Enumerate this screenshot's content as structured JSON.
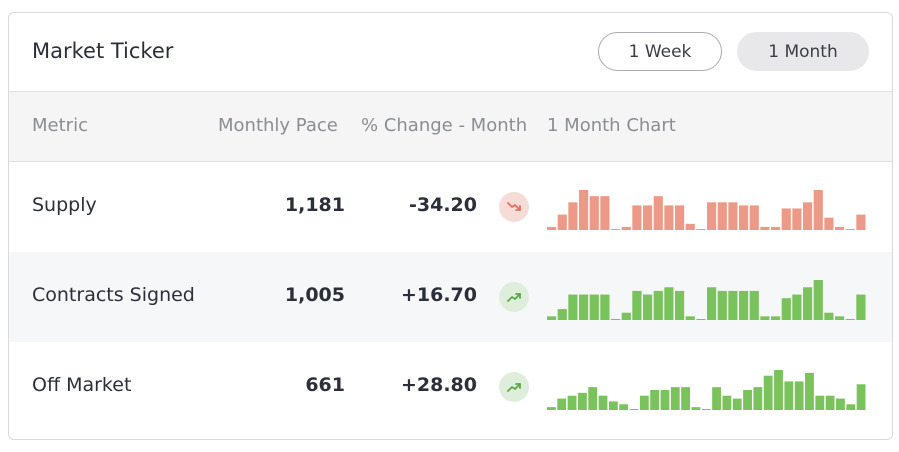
{
  "header": {
    "title": "Market Ticker"
  },
  "range_buttons": [
    {
      "label": "1 Week",
      "selected": false
    },
    {
      "label": "1 Month",
      "selected": true
    }
  ],
  "columns": [
    "Metric",
    "Monthly Pace",
    "% Change - Month",
    "1 Month Chart"
  ],
  "colors": {
    "down": "#ec9a87",
    "up": "#7ac25b",
    "down_icon": "#e0715d",
    "up_icon": "#5aa844"
  },
  "rows": [
    {
      "metric": "Supply",
      "pace": "1,181",
      "change": "-34.20",
      "trend": "down",
      "trend_icon": "trend-down-icon",
      "series": [
        1,
        5,
        9,
        13,
        11,
        11,
        0,
        1,
        8,
        8,
        11,
        8,
        8,
        2,
        0,
        9,
        9,
        9,
        8,
        8,
        1,
        1,
        7,
        7,
        9,
        13,
        4,
        1,
        0,
        5
      ]
    },
    {
      "metric": "Contracts Signed",
      "pace": "1,005",
      "change": "+16.70",
      "trend": "up",
      "trend_icon": "trend-up-icon",
      "series": [
        1,
        3,
        7,
        7,
        7,
        7,
        0,
        2,
        8,
        7,
        8,
        9,
        8,
        1,
        0,
        9,
        8,
        8,
        8,
        8,
        1,
        1,
        6,
        7,
        9,
        11,
        2,
        1,
        0,
        7
      ]
    },
    {
      "metric": "Off Market",
      "pace": "661",
      "change": "+28.80",
      "trend": "up",
      "trend_icon": "trend-up-icon",
      "series": [
        1,
        4,
        5,
        6,
        8,
        5,
        3,
        2,
        0,
        5,
        7,
        7,
        8,
        8,
        1,
        0,
        8,
        5,
        4,
        7,
        8,
        12,
        14,
        10,
        10,
        13,
        5,
        5,
        4,
        2,
        9
      ]
    }
  ]
}
